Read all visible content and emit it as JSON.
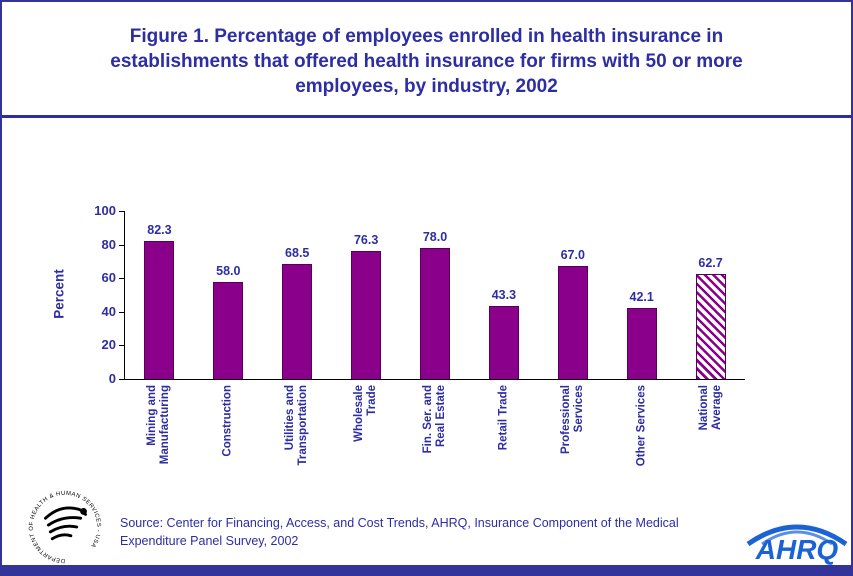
{
  "title": "Figure 1. Percentage of employees enrolled in health insurance in establishments that offered health insurance for firms with 50 or more employees, by industry, 2002",
  "source": {
    "line1": "Source: Center for Financing, Access, and Cost Trends, AHRQ, Insurance Component of the Medical",
    "line2": "Expenditure Panel Survey, 2002"
  },
  "logos": {
    "ahrq_text": "AHRQ",
    "hhs_circle_text": "DEPARTMENT OF HEALTH & HUMAN SERVICES - USA"
  },
  "colors": {
    "accent_navy": "#2d2da4",
    "frame_navy": "#333399",
    "bar_purple": "#8B008B",
    "ahrq_blue": "#1b62d4"
  },
  "chart_data": {
    "type": "bar",
    "title": "Percentage of employees enrolled in health insurance in establishments that offered health insurance for firms with 50 or more employees, by industry, 2002",
    "categories": [
      "Mining and\nManufacturing",
      "Construction",
      "Utilities and\nTransportation",
      "Wholesale\nTrade",
      "Fin. Ser. and\nReal Estate",
      "Retail Trade",
      "Professional\nServices",
      "Other Services",
      "National\nAverage"
    ],
    "values": [
      82.3,
      58.0,
      68.5,
      76.3,
      78.0,
      43.3,
      67.0,
      42.1,
      62.7
    ],
    "value_labels": [
      "82.3",
      "58.0",
      "68.5",
      "76.3",
      "78.0",
      "43.3",
      "67.0",
      "42.1",
      "62.7"
    ],
    "hatched": [
      false,
      false,
      false,
      false,
      false,
      false,
      false,
      false,
      true
    ],
    "xlabel": "",
    "ylabel": "Percent",
    "ylim": [
      0,
      100
    ],
    "yticks": [
      0,
      20,
      40,
      60,
      80,
      100
    ],
    "grid": false,
    "legend": "none"
  }
}
